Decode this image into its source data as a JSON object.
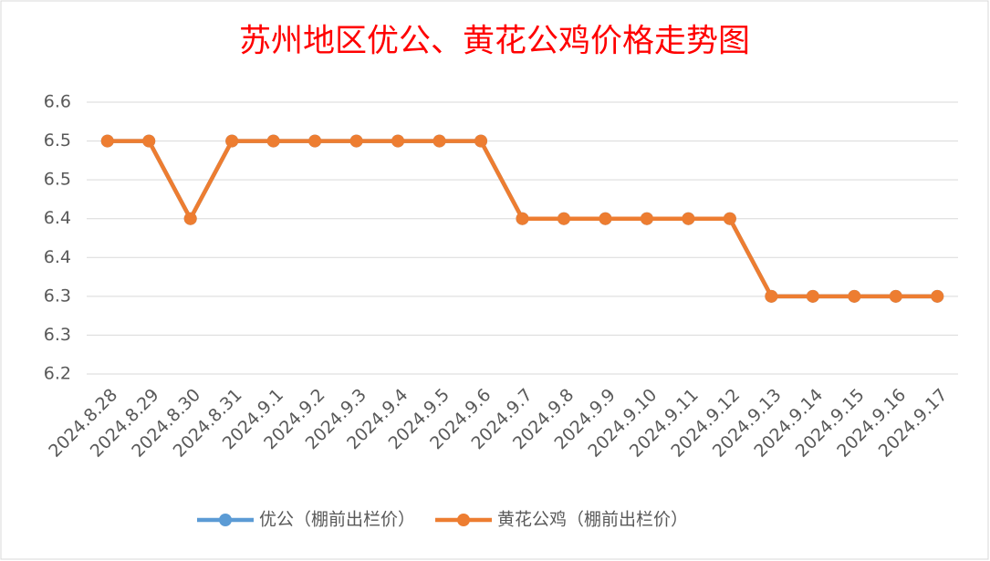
{
  "chart_data": {
    "type": "line",
    "title": "苏州地区优公、黄花公鸡价格走势图",
    "categories": [
      "2024.8.28",
      "2024.8.29",
      "2024.8.30",
      "2024.8.31",
      "2024.9.1",
      "2024.9.2",
      "2024.9.3",
      "2024.9.4",
      "2024.9.5",
      "2024.9.6",
      "2024.9.7",
      "2024.9.8",
      "2024.9.9",
      "2024.9.10",
      "2024.9.11",
      "2024.9.12",
      "2024.9.13",
      "2024.9.14",
      "2024.9.15",
      "2024.9.16",
      "2024.9.17"
    ],
    "series": [
      {
        "name": "优公（棚前出栏价）",
        "color": "#5b9bd5",
        "values": [
          6.5,
          6.5,
          6.4,
          6.5,
          6.5,
          6.5,
          6.5,
          6.5,
          6.5,
          6.5,
          6.4,
          6.4,
          6.4,
          6.4,
          6.4,
          6.4,
          6.3,
          6.3,
          6.3,
          6.3,
          6.3
        ]
      },
      {
        "name": "黄花公鸡（棚前出栏价）",
        "color": "#ed7d31",
        "values": [
          6.5,
          6.5,
          6.4,
          6.5,
          6.5,
          6.5,
          6.5,
          6.5,
          6.5,
          6.5,
          6.4,
          6.4,
          6.4,
          6.4,
          6.4,
          6.4,
          6.3,
          6.3,
          6.3,
          6.3,
          6.3
        ]
      }
    ],
    "ylim": [
      6.2,
      6.55
    ],
    "yticks": [
      6.2,
      {
        "value": 6.25,
        "label": "6.3"
      },
      6.3,
      {
        "value": 6.35,
        "label": "6.4"
      },
      6.4,
      {
        "value": 6.45,
        "label": "6.5"
      },
      6.5,
      {
        "value": 6.55,
        "label": "6.6"
      }
    ],
    "grid": true,
    "legend": "bottom"
  }
}
